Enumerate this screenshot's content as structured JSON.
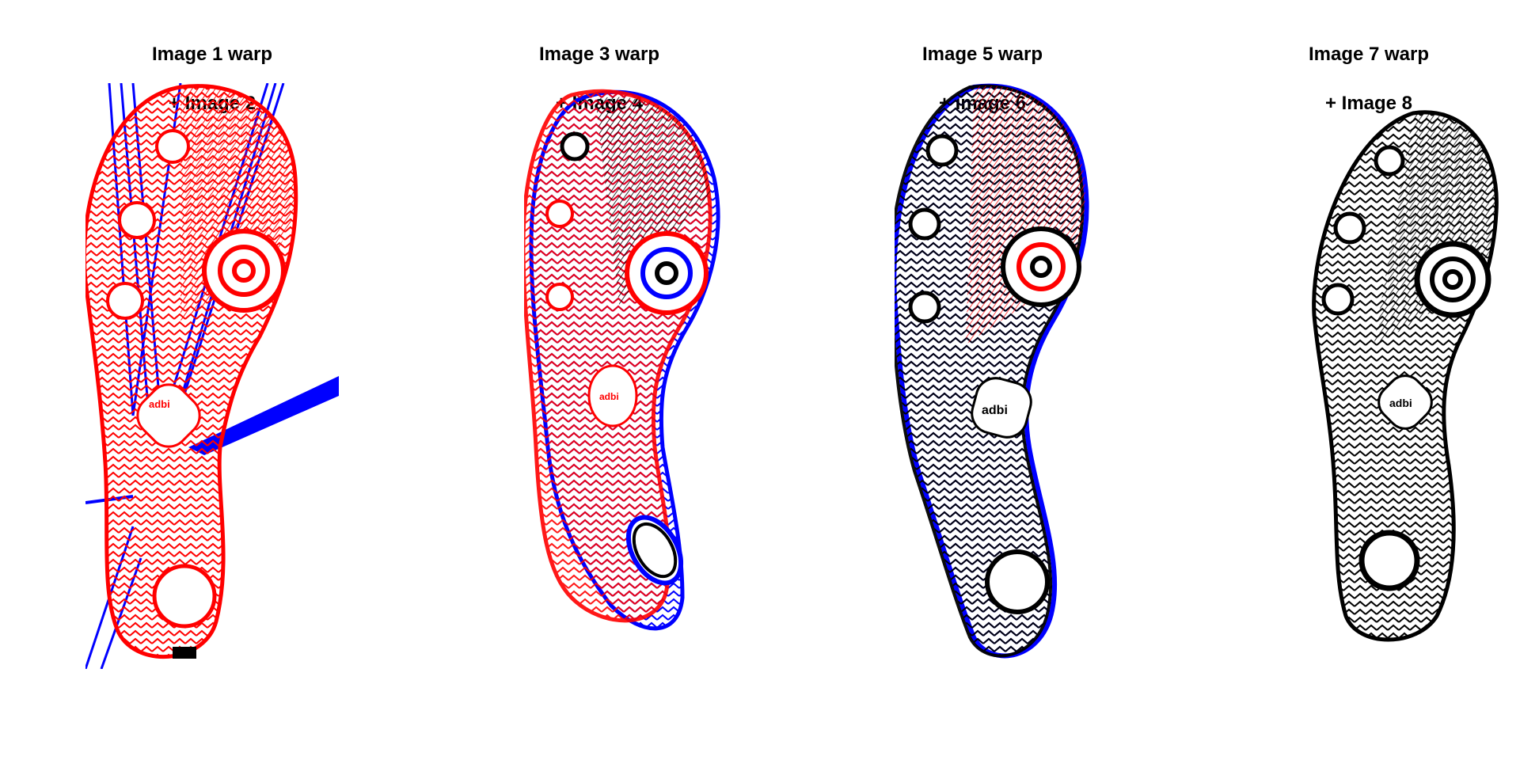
{
  "panels": [
    {
      "title_line1": "Image 1 warp",
      "title_line2": "+ Image 2",
      "logo_text": "adbi"
    },
    {
      "title_line1": "Image 3 warp",
      "title_line2": "+ Image 4",
      "logo_text": "adbi"
    },
    {
      "title_line1": "Image 5 warp",
      "title_line2": "+ Image 6",
      "logo_text": "adbi"
    },
    {
      "title_line1": "Image 7 warp",
      "title_line2": "+ Image 8",
      "logo_text": "adbi"
    }
  ],
  "colors": {
    "warped_overlay": "#ff0000",
    "reference_overlay": "#0000ff",
    "aligned_overlap": "#000000",
    "background": "#ffffff"
  }
}
